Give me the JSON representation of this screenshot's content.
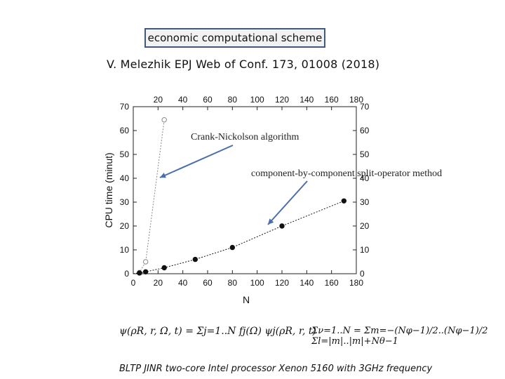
{
  "header": {
    "title": "economic computational scheme",
    "reference": "V. Melezhik EPJ Web of Conf. 173, 01008 (2018)"
  },
  "footer": {
    "text": "BLTP JINR two-core Intel processor Xenon 5160 with 3GHz frequency"
  },
  "formula": {
    "expansion": "ψ(ρR, r, Ω, t) = Σj=1..N fj(Ω) ψj(ρR, r, t)",
    "sum_identity": "Σν=1..N = Σm=−(Nφ−1)/2..(Nφ−1)/2 Σl=|m|..|m|+Nθ−1"
  },
  "chart_data": {
    "type": "scatter",
    "xlabel": "N",
    "ylabel": "CPU time (minut)",
    "xlim": [
      0,
      180
    ],
    "ylim": [
      0,
      70
    ],
    "x_ticks": [
      0,
      20,
      40,
      60,
      80,
      100,
      120,
      140,
      160,
      180
    ],
    "top_x_ticks": [
      20,
      40,
      60,
      80,
      100,
      120,
      140,
      160,
      180
    ],
    "y_ticks": [
      0,
      10,
      20,
      30,
      40,
      50,
      60,
      70
    ],
    "grid": false,
    "series": [
      {
        "name": "Crank-Nickolson algorithm",
        "marker": "open-circle",
        "color": "#888888",
        "x": [
          0,
          5,
          10,
          25
        ],
        "y": [
          0,
          0.5,
          5,
          64.5
        ]
      },
      {
        "name": "component-by-component split-operator method",
        "marker": "filled-circle",
        "color": "#111111",
        "x": [
          0,
          5,
          10,
          25,
          50,
          80,
          120,
          170
        ],
        "y": [
          0,
          0.3,
          0.8,
          2.5,
          6,
          11,
          20,
          30.5
        ]
      }
    ],
    "annotation_color": "#4a6ea9"
  }
}
